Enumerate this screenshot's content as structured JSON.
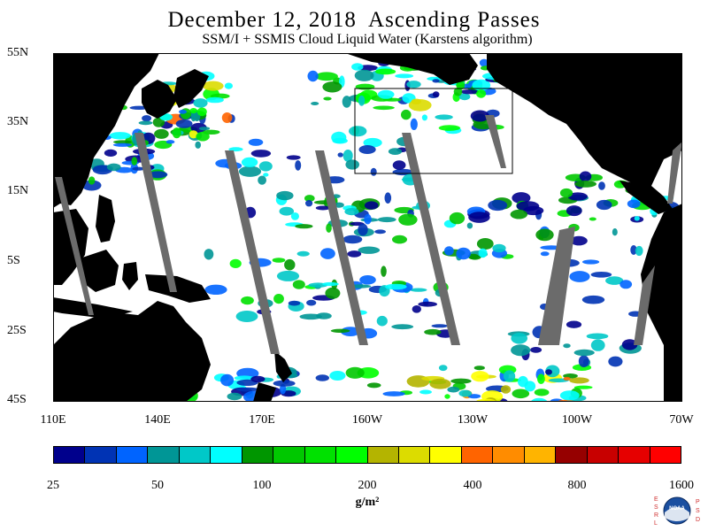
{
  "title": "December 12, 2018  Ascending Passes",
  "subtitle": "SSM/I + SSMIS Cloud Liquid Water (Karstens algorithm)",
  "map": {
    "lat_labels": [
      "55N",
      "35N",
      "15N",
      "5S",
      "25S",
      "45S"
    ],
    "lon_labels": [
      "110E",
      "140E",
      "170E",
      "160W",
      "130W",
      "100W",
      "70W"
    ],
    "land_color": "#000000",
    "swath_gap_color": "#6b6b6b",
    "clear_color": "#ffffff"
  },
  "colorbar": {
    "colors": [
      "#00008c",
      "#0033b4",
      "#0064ff",
      "#009696",
      "#00c8c8",
      "#00ffff",
      "#009600",
      "#00c800",
      "#00e100",
      "#00ff00",
      "#b4b400",
      "#dcdc00",
      "#ffff00",
      "#ff6400",
      "#ff8c00",
      "#ffb400",
      "#960000",
      "#c80000",
      "#e60000",
      "#ff0000"
    ],
    "labels": [
      "25",
      "50",
      "100",
      "200",
      "400",
      "800",
      "1600"
    ],
    "units": "g/m²"
  },
  "logo": {
    "left_text": "ESRL",
    "right_text": "PSD",
    "center_text": "NOAA"
  }
}
